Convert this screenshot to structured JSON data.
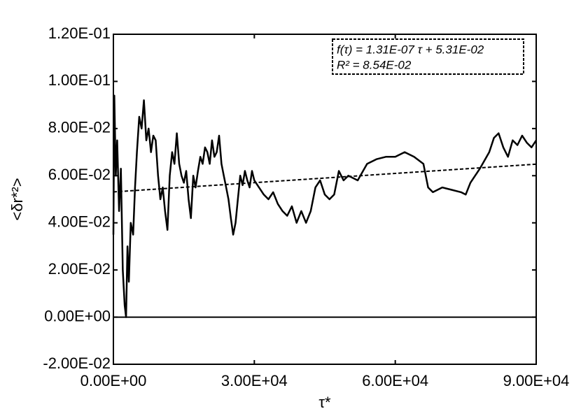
{
  "chart_data": {
    "type": "line",
    "xlabel": "τ*",
    "ylabel": "<δr*²>",
    "annotation": [
      "f(τ) = 1.31E-07 τ + 5.31E-02",
      "R² = 8.54E-02"
    ],
    "xlim": [
      0,
      90000
    ],
    "xticks": [
      {
        "value": 0,
        "label": "0.00E+00"
      },
      {
        "value": 30000,
        "label": "3.00E+04"
      },
      {
        "value": 60000,
        "label": "6.00E+04"
      },
      {
        "value": 90000,
        "label": "9.00E+04"
      }
    ],
    "ylim": [
      -0.02,
      0.12
    ],
    "yticks": [
      {
        "value": -0.02,
        "label": "-2.00E-02"
      },
      {
        "value": 0,
        "label": "0.00E+00"
      },
      {
        "value": 0.02,
        "label": "2.00E-02"
      },
      {
        "value": 0.04,
        "label": "4.00E-02"
      },
      {
        "value": 0.06,
        "label": "6.00E-02"
      },
      {
        "value": 0.08,
        "label": "8.00E-02"
      },
      {
        "value": 0.1,
        "label": "1.00E-01"
      },
      {
        "value": 0.12,
        "label": "1.20E-01"
      }
    ],
    "series": [
      {
        "color": "#000000",
        "x": [
          0,
          200,
          500,
          800,
          1200,
          1600,
          2000,
          2400,
          2700,
          3000,
          3300,
          3700,
          4200,
          4600,
          5000,
          5500,
          6000,
          6500,
          7000,
          7500,
          8000,
          8500,
          9000,
          9500,
          10000,
          10500,
          11000,
          11500,
          12000,
          12500,
          13000,
          13500,
          14000,
          14500,
          15000,
          15500,
          16000,
          16500,
          17000,
          17500,
          18000,
          18500,
          19000,
          19500,
          20000,
          20500,
          21000,
          21500,
          22000,
          22500,
          23000,
          23500,
          24000,
          24500,
          25000,
          25500,
          26000,
          26500,
          27000,
          27500,
          28000,
          28500,
          29000,
          29500,
          30000,
          31000,
          32000,
          33000,
          34000,
          35000,
          36000,
          37000,
          38000,
          39000,
          40000,
          41000,
          42000,
          43000,
          44000,
          45000,
          46000,
          47000,
          48000,
          49000,
          50000,
          52000,
          54000,
          56000,
          58000,
          60000,
          62000,
          64000,
          66000,
          67000,
          68000,
          70000,
          72000,
          74000,
          75000,
          76000,
          78000,
          80000,
          81000,
          82000,
          83000,
          84000,
          85000,
          86000,
          87000,
          88000,
          89000,
          90000
        ],
        "values": [
          0.035,
          0.094,
          0.06,
          0.075,
          0.045,
          0.063,
          0.02,
          0.005,
          0.0,
          0.03,
          0.015,
          0.04,
          0.035,
          0.055,
          0.07,
          0.085,
          0.08,
          0.092,
          0.075,
          0.08,
          0.07,
          0.077,
          0.075,
          0.06,
          0.05,
          0.055,
          0.045,
          0.037,
          0.06,
          0.07,
          0.065,
          0.078,
          0.065,
          0.06,
          0.057,
          0.062,
          0.05,
          0.042,
          0.06,
          0.055,
          0.062,
          0.068,
          0.065,
          0.072,
          0.07,
          0.065,
          0.075,
          0.068,
          0.07,
          0.077,
          0.065,
          0.06,
          0.055,
          0.05,
          0.042,
          0.035,
          0.04,
          0.05,
          0.06,
          0.056,
          0.062,
          0.058,
          0.055,
          0.062,
          0.058,
          0.055,
          0.052,
          0.05,
          0.053,
          0.048,
          0.045,
          0.043,
          0.047,
          0.04,
          0.045,
          0.04,
          0.045,
          0.055,
          0.058,
          0.052,
          0.05,
          0.052,
          0.062,
          0.058,
          0.06,
          0.058,
          0.065,
          0.067,
          0.068,
          0.068,
          0.07,
          0.068,
          0.065,
          0.055,
          0.053,
          0.055,
          0.054,
          0.053,
          0.052,
          0.057,
          0.063,
          0.07,
          0.076,
          0.078,
          0.072,
          0.068,
          0.075,
          0.073,
          0.077,
          0.074,
          0.072,
          0.075
        ]
      },
      {
        "color": "#000000",
        "dash": true,
        "x": [
          0,
          90000
        ],
        "values": [
          0.0531,
          0.0649
        ]
      }
    ]
  }
}
